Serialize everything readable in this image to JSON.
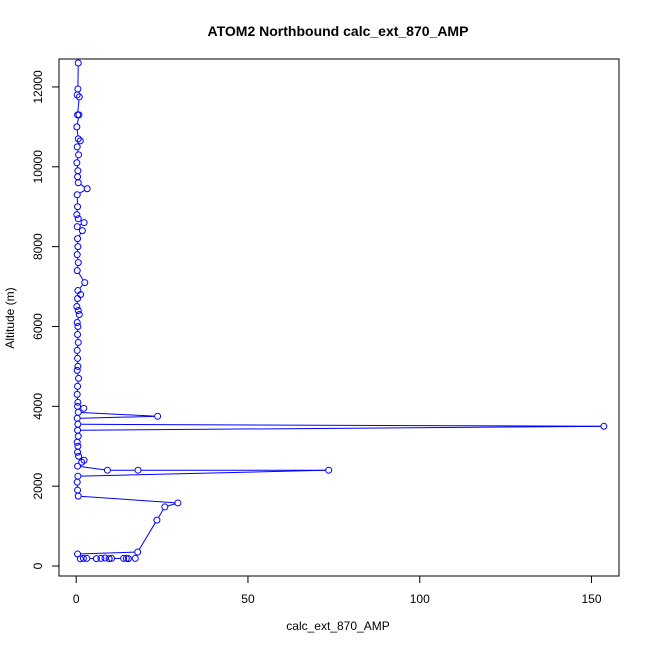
{
  "chart_data": {
    "type": "scatter",
    "title": "ATOM2 Northbound calc_ext_870_AMP",
    "xlabel": "calc_ext_870_AMP",
    "ylabel": "Altitude (m)",
    "xlim": [
      -5,
      158
    ],
    "ylim": [
      -250,
      12700
    ],
    "x_ticks": [
      0,
      50,
      100,
      150
    ],
    "x_tick_labels": [
      "0",
      "50",
      "100",
      "150"
    ],
    "y_ticks": [
      0,
      2000,
      4000,
      6000,
      8000,
      10000,
      12000
    ],
    "y_tick_labels": [
      "0",
      "2000",
      "4000",
      "6000",
      "8000",
      "10000",
      "12000"
    ],
    "grid": false,
    "legend": "none",
    "color": "#0000ff",
    "series": [
      {
        "points": [
          [
            0.6,
            12600
          ],
          [
            0.5,
            11950
          ],
          [
            0.3,
            11800
          ],
          [
            0.9,
            11750
          ],
          [
            0.4,
            11300
          ],
          [
            0.8,
            11300
          ],
          [
            0.2,
            11000
          ],
          [
            0.6,
            10700
          ],
          [
            1.2,
            10650
          ],
          [
            0.3,
            10500
          ],
          [
            0.7,
            10300
          ],
          [
            0.2,
            10100
          ],
          [
            0.5,
            9900
          ],
          [
            0.4,
            9750
          ],
          [
            0.6,
            9600
          ],
          [
            3.2,
            9450
          ],
          [
            0.3,
            9300
          ],
          [
            0.4,
            9000
          ],
          [
            0.2,
            8800
          ],
          [
            0.6,
            8700
          ],
          [
            2.3,
            8600
          ],
          [
            0.3,
            8500
          ],
          [
            1.8,
            8400
          ],
          [
            0.4,
            8200
          ],
          [
            0.5,
            8000
          ],
          [
            0.3,
            7800
          ],
          [
            0.6,
            7600
          ],
          [
            0.3,
            7400
          ],
          [
            2.5,
            7100
          ],
          [
            0.5,
            6900
          ],
          [
            1.3,
            6800
          ],
          [
            0.4,
            6700
          ],
          [
            0.2,
            6500
          ],
          [
            0.6,
            6400
          ],
          [
            0.9,
            6300
          ],
          [
            0.3,
            6100
          ],
          [
            0.5,
            6000
          ],
          [
            0.4,
            5800
          ],
          [
            0.6,
            5600
          ],
          [
            0.3,
            5400
          ],
          [
            0.4,
            5200
          ],
          [
            0.5,
            5000
          ],
          [
            0.3,
            4900
          ],
          [
            0.7,
            4700
          ],
          [
            0.4,
            4500
          ],
          [
            0.3,
            4300
          ],
          [
            0.5,
            4100
          ],
          [
            0.4,
            4000
          ],
          [
            2.2,
            3950
          ],
          [
            0.6,
            3850
          ],
          [
            23.7,
            3750
          ],
          [
            0.3,
            3700
          ],
          [
            0.5,
            3550
          ],
          [
            153.6,
            3500
          ],
          [
            0.4,
            3400
          ],
          [
            0.6,
            3250
          ],
          [
            0.3,
            3100
          ],
          [
            0.5,
            3000
          ],
          [
            0.4,
            2850
          ],
          [
            0.7,
            2750
          ],
          [
            2.3,
            2650
          ],
          [
            1.6,
            2600
          ],
          [
            0.4,
            2500
          ],
          [
            9.1,
            2400
          ],
          [
            18.0,
            2400
          ],
          [
            73.5,
            2400
          ],
          [
            0.5,
            2250
          ],
          [
            0.3,
            2100
          ],
          [
            0.4,
            1900
          ],
          [
            0.6,
            1750
          ],
          [
            29.6,
            1580
          ],
          [
            25.8,
            1480
          ],
          [
            23.5,
            1150
          ],
          [
            17.9,
            350
          ],
          [
            0.4,
            300
          ],
          [
            1.2,
            180
          ],
          [
            2.1,
            190
          ],
          [
            3.1,
            190
          ],
          [
            5.9,
            185
          ],
          [
            7.2,
            190
          ],
          [
            8.4,
            200
          ],
          [
            9.6,
            185
          ],
          [
            10.3,
            190
          ],
          [
            13.8,
            190
          ],
          [
            14.6,
            190
          ],
          [
            15.2,
            185
          ],
          [
            17.2,
            190
          ]
        ]
      }
    ]
  }
}
